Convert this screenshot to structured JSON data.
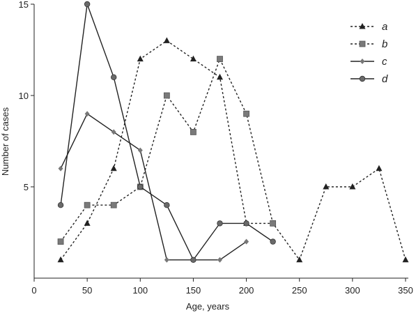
{
  "chart_data": {
    "type": "line",
    "title": "",
    "xlabel": "Age, years",
    "ylabel": "Number of cases",
    "xlim": [
      0,
      350
    ],
    "ylim": [
      0,
      15
    ],
    "xticks": [
      0,
      50,
      100,
      150,
      200,
      250,
      300,
      350
    ],
    "yticks": [
      5,
      10,
      15
    ],
    "grid": false,
    "legend_position": "top-right",
    "series": [
      {
        "name": "a",
        "marker": "triangle",
        "line_style": "dotted",
        "color": "#222222",
        "points": [
          [
            25,
            1
          ],
          [
            50,
            3
          ],
          [
            75,
            6
          ],
          [
            100,
            12
          ],
          [
            125,
            13
          ],
          [
            150,
            12
          ],
          [
            175,
            11
          ],
          [
            200,
            3
          ],
          [
            225,
            3
          ],
          [
            250,
            1
          ],
          [
            275,
            5
          ],
          [
            300,
            5
          ],
          [
            325,
            6
          ],
          [
            350,
            1
          ]
        ]
      },
      {
        "name": "b",
        "marker": "square",
        "line_style": "dotted",
        "color": "#222222",
        "points": [
          [
            25,
            2
          ],
          [
            50,
            4
          ],
          [
            75,
            4
          ],
          [
            100,
            5
          ],
          [
            125,
            10
          ],
          [
            150,
            8
          ],
          [
            175,
            12
          ],
          [
            200,
            9
          ],
          [
            225,
            3
          ]
        ]
      },
      {
        "name": "c",
        "marker": "diamond",
        "line_style": "solid",
        "color": "#222222",
        "points": [
          [
            25,
            6
          ],
          [
            50,
            9
          ],
          [
            75,
            8
          ],
          [
            100,
            7
          ],
          [
            125,
            1
          ],
          [
            150,
            1
          ],
          [
            175,
            1
          ],
          [
            200,
            2
          ]
        ]
      },
      {
        "name": "d",
        "marker": "circle",
        "line_style": "solid",
        "color": "#222222",
        "points": [
          [
            25,
            4
          ],
          [
            50,
            15
          ],
          [
            75,
            11
          ],
          [
            100,
            5
          ],
          [
            125,
            4
          ],
          [
            150,
            1
          ],
          [
            175,
            3
          ],
          [
            200,
            3
          ],
          [
            225,
            2
          ]
        ]
      }
    ]
  }
}
